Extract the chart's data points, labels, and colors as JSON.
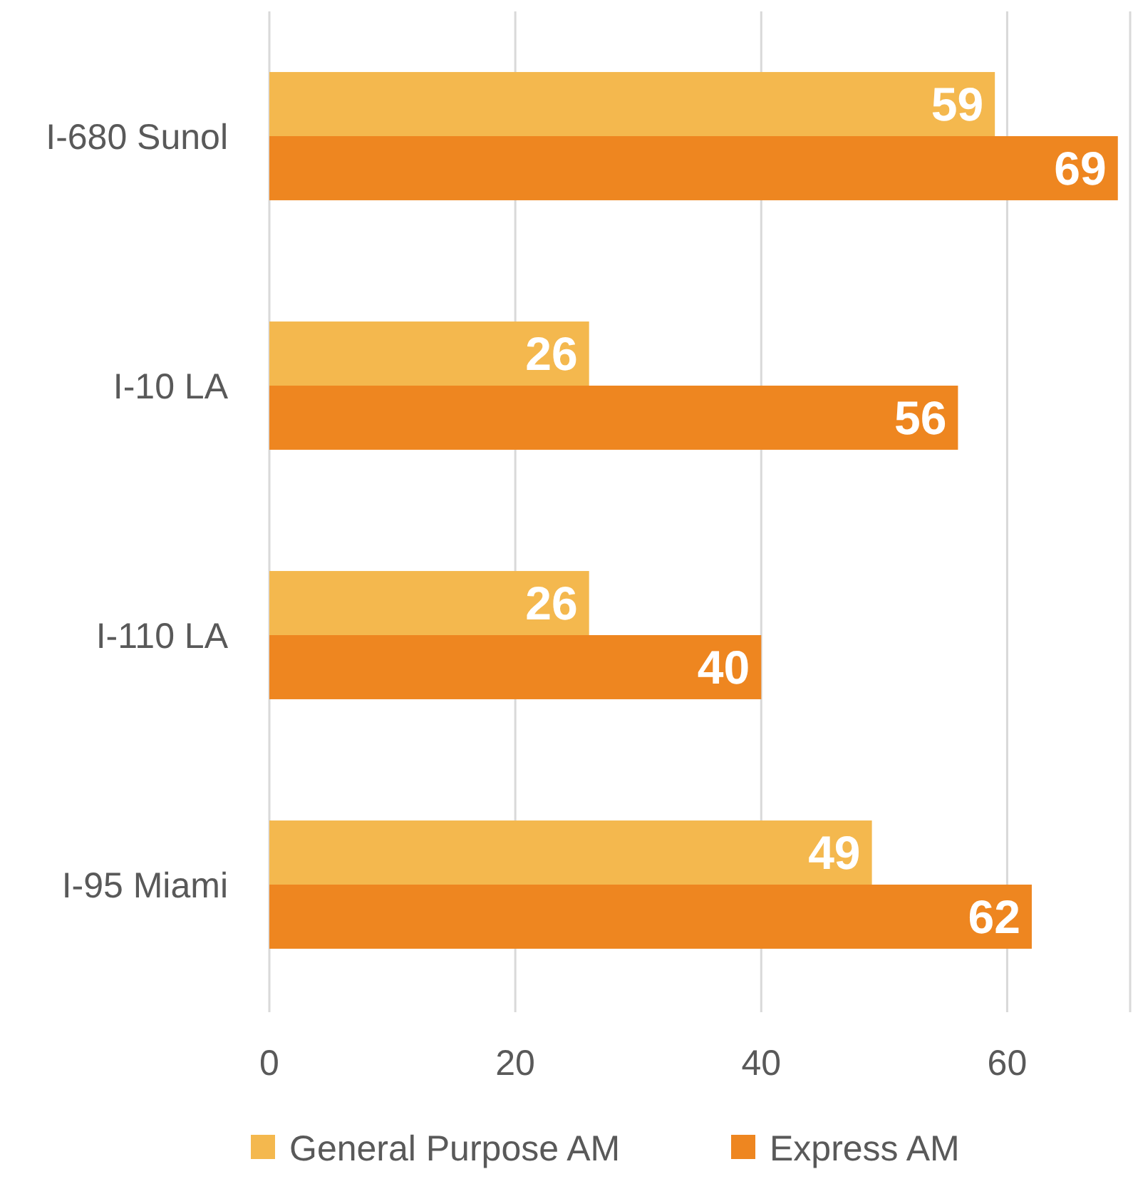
{
  "chart_data": {
    "type": "bar",
    "orientation": "horizontal",
    "categories": [
      "I-680 Sunol",
      "I-10 LA",
      "I-110 LA",
      "I-95 Miami"
    ],
    "series": [
      {
        "name": "General Purpose AM",
        "color": "#f4b84e",
        "values": [
          59,
          26,
          26,
          49
        ]
      },
      {
        "name": "Express AM",
        "color": "#ee8620",
        "values": [
          69,
          56,
          40,
          62
        ]
      }
    ],
    "xlim": [
      0,
      70
    ],
    "xticks": [
      0,
      20,
      40,
      60,
      {
        "value": 70,
        "label": null
      }
    ],
    "grid": "x",
    "data_labels": true,
    "legend": "bottom"
  }
}
